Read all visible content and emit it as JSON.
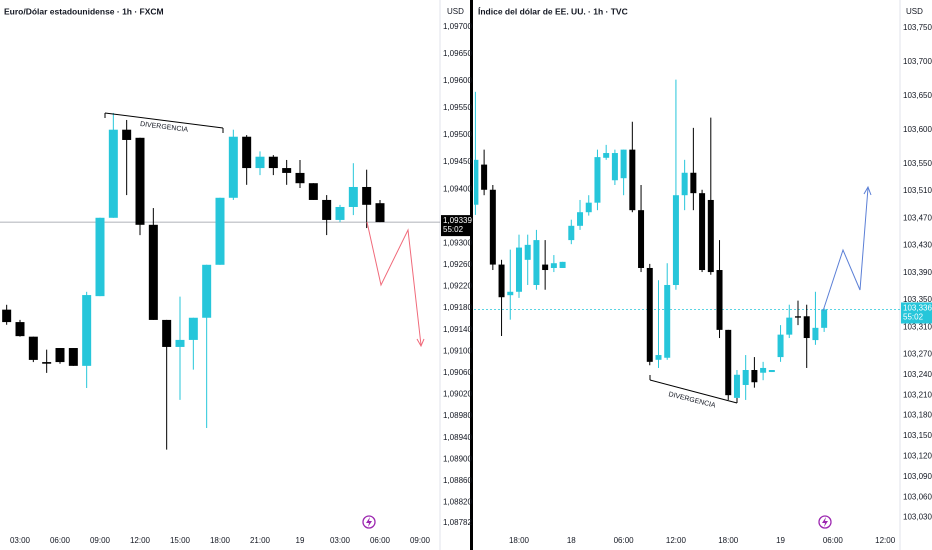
{
  "chart_data": [
    {
      "type": "candlestick",
      "title": "Euro/Dólar estadounidense · 1h · FXCM",
      "currency": "USD",
      "annotation": "DIVERGENCIA",
      "up_color": "#26c6da",
      "down_color": "#000000",
      "price_line_color": "#9598a1",
      "price_label_color": "#000000",
      "x": [
        -1,
        0,
        1,
        2,
        3,
        4,
        5,
        6,
        7,
        8,
        9,
        10,
        11,
        12,
        13,
        14,
        15,
        16,
        17,
        18,
        19,
        20,
        21,
        22,
        23,
        24,
        25,
        26,
        27
      ],
      "open": [
        1.09177,
        1.09154,
        1.09127,
        1.0908,
        1.09106,
        1.09106,
        1.09073,
        1.09202,
        1.09347,
        1.0951,
        1.09495,
        1.09334,
        1.09158,
        1.09108,
        1.09121,
        1.09162,
        1.0926,
        1.09384,
        1.09497,
        1.09439,
        1.0946,
        1.09439,
        1.0943,
        1.09411,
        1.0938,
        1.09343,
        1.09367,
        1.09404,
        1.09374
      ],
      "high": [
        1.09186,
        1.09158,
        1.09127,
        1.09103,
        1.09106,
        1.09106,
        1.0921,
        1.09347,
        1.09541,
        1.09528,
        1.09495,
        1.09365,
        1.09158,
        1.09201,
        1.09162,
        1.0926,
        1.09384,
        1.0951,
        1.095,
        1.0947,
        1.09463,
        1.09454,
        1.09454,
        1.09411,
        1.09389,
        1.09371,
        1.09448,
        1.09436,
        1.0938
      ],
      "low": [
        1.09149,
        1.09127,
        1.0908,
        1.0906,
        1.09077,
        1.09073,
        1.09032,
        1.09202,
        1.09347,
        1.09389,
        1.09315,
        1.09158,
        1.08918,
        1.0901,
        1.09066,
        1.08958,
        1.0926,
        1.0938,
        1.09408,
        1.09426,
        1.09426,
        1.09408,
        1.09402,
        1.0938,
        1.09315,
        1.09339,
        1.09352,
        1.09328,
        1.09339
      ],
      "close": [
        1.09154,
        1.09128,
        1.09084,
        1.09077,
        1.0908,
        1.09073,
        1.09204,
        1.09347,
        1.0951,
        1.09491,
        1.09334,
        1.09158,
        1.09108,
        1.09121,
        1.09162,
        1.0926,
        1.09384,
        1.09497,
        1.09439,
        1.0946,
        1.09439,
        1.0943,
        1.09411,
        1.0938,
        1.09343,
        1.09367,
        1.09404,
        1.09371,
        1.09339
      ],
      "xlim": [
        -1.5,
        31.5
      ],
      "xticks": [
        {
          "value": 0,
          "label": "03:00"
        },
        {
          "value": 3,
          "label": "06:00"
        },
        {
          "value": 6,
          "label": "09:00"
        },
        {
          "value": 9,
          "label": "12:00"
        },
        {
          "value": 12,
          "label": "15:00"
        },
        {
          "value": 15,
          "label": "18:00"
        },
        {
          "value": 18,
          "label": "21:00"
        },
        {
          "value": 21,
          "label": "19"
        },
        {
          "value": 24,
          "label": "03:00"
        },
        {
          "value": 27,
          "label": "06:00"
        },
        {
          "value": 30,
          "label": "09:00"
        }
      ],
      "ylim": [
        1.0876,
        1.0975
      ],
      "yticks": [
        {
          "value": 1.097,
          "label": "1,09700"
        },
        {
          "value": 1.0965,
          "label": "1,09650"
        },
        {
          "value": 1.096,
          "label": "1,09600"
        },
        {
          "value": 1.0955,
          "label": "1,09550"
        },
        {
          "value": 1.095,
          "label": "1,09500"
        },
        {
          "value": 1.0945,
          "label": "1,09450"
        },
        {
          "value": 1.094,
          "label": "1,09400"
        },
        {
          "value": 1.093,
          "label": "1,09300"
        },
        {
          "value": 1.0926,
          "label": "1,09260"
        },
        {
          "value": 1.0922,
          "label": "1,09220"
        },
        {
          "value": 1.0918,
          "label": "1,09180"
        },
        {
          "value": 1.0914,
          "label": "1,09140"
        },
        {
          "value": 1.091,
          "label": "1,09100"
        },
        {
          "value": 1.0906,
          "label": "1,09060"
        },
        {
          "value": 1.0902,
          "label": "1,09020"
        },
        {
          "value": 1.0898,
          "label": "1,08980"
        },
        {
          "value": 1.0894,
          "label": "1,08940"
        },
        {
          "value": 1.089,
          "label": "1,08900"
        },
        {
          "value": 1.0886,
          "label": "1,08860"
        },
        {
          "value": 1.0882,
          "label": "1,08820"
        },
        {
          "value": 1.08782,
          "label": "1,08782"
        }
      ],
      "last_price": {
        "value": 1.09339,
        "label": "1,09339"
      },
      "countdown": "55:02"
    },
    {
      "type": "candlestick",
      "title": "Índice del dólar de EE. UU. · 1h · TVC",
      "currency": "USD",
      "annotation": "DIVERGENCIA",
      "up_color": "#26c6da",
      "down_color": "#000000",
      "price_line_color": "#26c6da",
      "price_label_color": "#26c6da",
      "x": [
        -5,
        -4,
        -3,
        -2,
        -1,
        0,
        1,
        2,
        3,
        4,
        5,
        6,
        7,
        8,
        9,
        10,
        11,
        12,
        13,
        14,
        15,
        16,
        17,
        18,
        19,
        20,
        21,
        22,
        23,
        24,
        25,
        26,
        27,
        28,
        29,
        30,
        31,
        32,
        33,
        34,
        35
      ],
      "open": [
        103.49,
        103.549,
        103.512,
        103.402,
        103.357,
        103.362,
        103.409,
        103.372,
        103.402,
        103.397,
        103.397,
        103.438,
        103.459,
        103.479,
        103.493,
        103.559,
        103.526,
        103.529,
        103.571,
        103.482,
        103.397,
        103.262,
        103.265,
        103.372,
        103.504,
        103.537,
        103.507,
        103.497,
        103.394,
        103.306,
        103.206,
        103.225,
        103.247,
        103.243,
        103.244,
        103.266,
        103.299,
        103.326,
        103.326,
        103.291,
        103.309
      ],
      "high": [
        103.656,
        103.571,
        103.519,
        103.409,
        103.424,
        103.446,
        103.446,
        103.453,
        103.438,
        103.416,
        103.406,
        103.468,
        103.497,
        103.504,
        103.571,
        103.578,
        103.571,
        103.571,
        103.612,
        103.519,
        103.403,
        103.379,
        103.404,
        103.674,
        103.556,
        103.603,
        103.512,
        103.618,
        103.438,
        103.306,
        103.247,
        103.269,
        103.266,
        103.259,
        103.247,
        103.313,
        103.343,
        103.349,
        103.343,
        103.362,
        103.338
      ],
      "low": [
        103.475,
        103.504,
        103.394,
        103.297,
        103.321,
        103.353,
        103.372,
        103.365,
        103.365,
        103.391,
        103.397,
        103.432,
        103.453,
        103.474,
        103.482,
        103.556,
        103.519,
        103.504,
        103.479,
        103.391,
        103.254,
        103.25,
        103.262,
        103.365,
        103.482,
        103.482,
        103.391,
        103.387,
        103.294,
        103.203,
        103.203,
        103.203,
        103.221,
        103.232,
        103.244,
        103.259,
        103.294,
        103.313,
        103.25,
        103.284,
        103.303
      ],
      "close": [
        103.556,
        103.512,
        103.402,
        103.354,
        103.362,
        103.427,
        103.431,
        103.438,
        103.394,
        103.404,
        103.406,
        103.459,
        103.479,
        103.493,
        103.56,
        103.566,
        103.566,
        103.571,
        103.482,
        103.397,
        103.259,
        103.269,
        103.372,
        103.504,
        103.537,
        103.507,
        103.394,
        103.391,
        103.306,
        103.21,
        103.24,
        103.247,
        103.229,
        103.25,
        103.247,
        103.299,
        103.324,
        103.324,
        103.294,
        103.309,
        103.336
      ],
      "xlim": [
        -5.16,
        43.7
      ],
      "xticks": [
        {
          "value": 0,
          "label": "18:00"
        },
        {
          "value": 6,
          "label": "18"
        },
        {
          "value": 12,
          "label": "06:00"
        },
        {
          "value": 18,
          "label": "12:00"
        },
        {
          "value": 24,
          "label": "18:00"
        },
        {
          "value": 30,
          "label": "19"
        },
        {
          "value": 36,
          "label": "06:00"
        },
        {
          "value": 42,
          "label": "12:00"
        }
      ],
      "ylim": [
        103.0,
        103.791
      ],
      "yticks": [
        {
          "value": 103.75,
          "label": "103,750"
        },
        {
          "value": 103.7,
          "label": "103,700"
        },
        {
          "value": 103.65,
          "label": "103,650"
        },
        {
          "value": 103.6,
          "label": "103,600"
        },
        {
          "value": 103.55,
          "label": "103,550"
        },
        {
          "value": 103.51,
          "label": "103,510"
        },
        {
          "value": 103.47,
          "label": "103,470"
        },
        {
          "value": 103.43,
          "label": "103,430"
        },
        {
          "value": 103.39,
          "label": "103,390"
        },
        {
          "value": 103.35,
          "label": "103,350"
        },
        {
          "value": 103.31,
          "label": "103,310"
        },
        {
          "value": 103.27,
          "label": "103,270"
        },
        {
          "value": 103.24,
          "label": "103,240"
        },
        {
          "value": 103.21,
          "label": "103,210"
        },
        {
          "value": 103.18,
          "label": "103,180"
        },
        {
          "value": 103.15,
          "label": "103,150"
        },
        {
          "value": 103.12,
          "label": "103,120"
        },
        {
          "value": 103.09,
          "label": "103,090"
        },
        {
          "value": 103.06,
          "label": "103,060"
        },
        {
          "value": 103.03,
          "label": "103,030"
        }
      ],
      "last_price": {
        "value": 103.336,
        "label": "103,336"
      },
      "countdown": "55:02"
    }
  ]
}
